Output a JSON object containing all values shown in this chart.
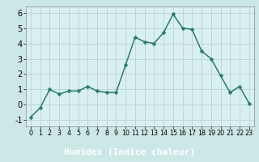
{
  "x": [
    0,
    1,
    2,
    3,
    4,
    5,
    6,
    7,
    8,
    9,
    10,
    11,
    12,
    13,
    14,
    15,
    16,
    17,
    18,
    19,
    20,
    21,
    22,
    23
  ],
  "y": [
    -0.8,
    -0.2,
    1.0,
    0.7,
    0.9,
    0.9,
    1.2,
    0.9,
    0.8,
    0.8,
    2.6,
    4.4,
    4.1,
    4.0,
    4.7,
    5.9,
    5.0,
    4.9,
    3.5,
    3.0,
    1.9,
    0.8,
    1.2,
    0.1
  ],
  "xlabel": "Humidex (Indice chaleur)",
  "xlim": [
    -0.5,
    23.5
  ],
  "ylim": [
    -1.4,
    6.4
  ],
  "yticks": [
    -1,
    0,
    1,
    2,
    3,
    4,
    5,
    6
  ],
  "xtick_labels": [
    "0",
    "1",
    "2",
    "3",
    "4",
    "5",
    "6",
    "7",
    "8",
    "9",
    "10",
    "11",
    "12",
    "13",
    "14",
    "15",
    "16",
    "17",
    "18",
    "19",
    "20",
    "21",
    "22",
    "23"
  ],
  "line_color": "#2a7a6e",
  "marker_color": "#2a7a6e",
  "bg_color": "#cce8e6",
  "plot_bg": "#d8f0ef",
  "grid_color": "#b8d4d0",
  "xlabel_bar_color": "#2a6e6e",
  "xlabel_text_color": "#ffffff",
  "tick_label_color": "#000000",
  "ytick_fontsize": 7.0,
  "xtick_fontsize": 5.8,
  "xlabel_fontsize": 8.0,
  "linewidth": 1.1,
  "markersize": 2.5
}
